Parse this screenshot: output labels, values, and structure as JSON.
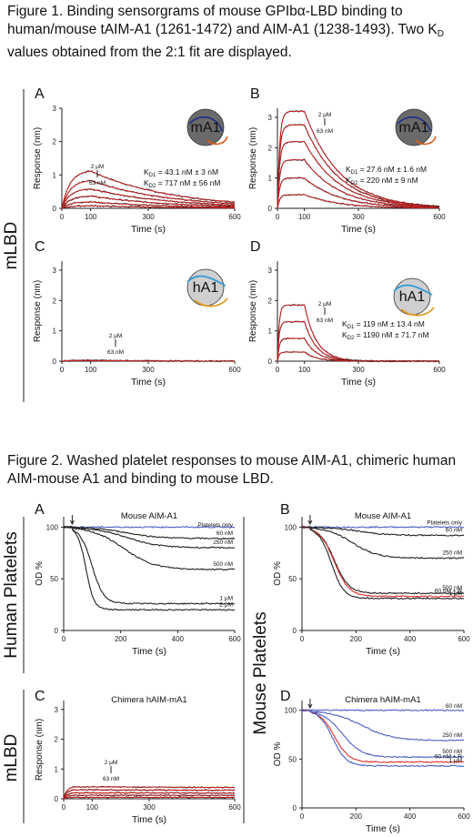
{
  "figure1": {
    "caption_pre": "Figure 1. Binding sensorgrams of mouse GPIbα-LBD binding to human/mouse tAIM-A1 (1261-1472) and AIM-A1 (1238-1493). Two K",
    "caption_sub": "D",
    "caption_post": " values obtained from the 2:1 fit are displayed.",
    "row_label": "mLBD"
  },
  "figure2": {
    "caption": "Figure 2. Washed platelet responses to mouse AIM-A1, chimeric human AIM-mouse A1 and binding to mouse LBD.",
    "row_labels": [
      "Human Platelets",
      "Mouse Platelets",
      "mLBD"
    ]
  },
  "colors": {
    "fit": "#d42020",
    "data": "#222222",
    "blue": "#4a5fc4",
    "red": "#e03030",
    "circle_dark": "#6a6a6a",
    "circle_light": "#cfcfcf"
  },
  "chart_data": [
    {
      "id": "1A",
      "type": "line",
      "panel_label": "A",
      "xlabel": "Time (s)",
      "ylabel": "Response (nm)",
      "xlim": [
        0,
        600
      ],
      "ylim": [
        0,
        3
      ],
      "xticks": [
        "0",
        "100",
        "300",
        "600"
      ],
      "yticks": [
        "0",
        "1",
        "2",
        "3"
      ],
      "conc_top": "2 μM",
      "conc_bottom": "63 nM",
      "kd1_label": "K",
      "kd1_sub": "D1",
      "kd1_value": " = 43.1 nM ± 3 nM",
      "kd2_label": "K",
      "kd2_sub": "D2",
      "kd2_value": " = 717 nM ± 56 nM",
      "icon_label": "mA1",
      "icon_style": "dark",
      "assoc_end": 100,
      "tau_on": 28,
      "tau_off": 280,
      "plateaus": [
        1.15,
        0.85,
        0.6,
        0.38,
        0.2,
        0.08
      ]
    },
    {
      "id": "1B",
      "type": "line",
      "panel_label": "B",
      "xlabel": "Time (s)",
      "ylabel": "Response (nm)",
      "xlim": [
        0,
        600
      ],
      "ylim": [
        0,
        3.3
      ],
      "xticks": [
        "0",
        "100",
        "300",
        "600"
      ],
      "yticks": [
        "0",
        "1",
        "2",
        "3"
      ],
      "conc_top": "2 μM",
      "conc_bottom": "63 nM",
      "kd1_label": "K",
      "kd1_sub": "D1",
      "kd1_value": " = 27.6 nM ± 1.6 nM",
      "kd2_label": "K",
      "kd2_sub": "D2",
      "kd2_value": " = 220 nM ± 9 nM",
      "icon_label": "mA1",
      "icon_style": "dark",
      "assoc_end": 100,
      "tau_on": 8,
      "tau_off": 130,
      "plateaus": [
        3.2,
        2.75,
        2.2,
        1.6,
        1.0,
        0.45
      ]
    },
    {
      "id": "1C",
      "type": "line",
      "panel_label": "C",
      "xlabel": "Time (s)",
      "ylabel": "Response (nm)",
      "xlim": [
        0,
        600
      ],
      "ylim": [
        0,
        3.3
      ],
      "xticks": [
        "0",
        "100",
        "300",
        "600"
      ],
      "yticks": [
        "0",
        "1",
        "2",
        "3"
      ],
      "conc_top": "2 μM",
      "conc_bottom": "63 nM",
      "icon_label": "hA1",
      "icon_style": "light",
      "assoc_end": 100,
      "tau_on": 20,
      "tau_off": 200,
      "plateaus": [
        0.03,
        0.02
      ]
    },
    {
      "id": "1D",
      "type": "line",
      "panel_label": "D",
      "xlabel": "Time (s)",
      "ylabel": "Response (nm)",
      "xlim": [
        0,
        600
      ],
      "ylim": [
        0,
        3.3
      ],
      "xticks": [
        "0",
        "100",
        "300",
        "600"
      ],
      "yticks": [
        "0",
        "1",
        "2",
        "3"
      ],
      "conc_top": "2 μM",
      "conc_bottom": "63 nM",
      "kd1_label": "K",
      "kd1_sub": "D1",
      "kd1_value": " = 119 nM ± 13.4 nM",
      "kd2_label": "K",
      "kd2_sub": "D2",
      "kd2_value": " = 1190 nM ± 71.7 nM",
      "icon_label": "hA1",
      "icon_style": "light",
      "assoc_end": 100,
      "tau_on": 6,
      "tau_off": 45,
      "plateaus": [
        1.85,
        1.3,
        0.75,
        0.3
      ]
    },
    {
      "id": "2A",
      "type": "line",
      "panel_label": "A",
      "title": "Mouse AIM-A1",
      "xlabel": "Time (s)",
      "ylabel": "OD %",
      "xlim": [
        0,
        600
      ],
      "ylim": [
        0,
        110
      ],
      "xticks": [
        "0",
        "200",
        "400",
        "600"
      ],
      "yticks": [
        "0",
        "50",
        "100"
      ],
      "series": [
        {
          "name": "Platelets only",
          "color": "blue",
          "final": 96,
          "t50": 9999
        },
        {
          "name": "60 nM",
          "color": "data",
          "final": 89,
          "t50": 320
        },
        {
          "name": "250 nM",
          "color": "data",
          "final": 80,
          "t50": 320
        },
        {
          "name": "500 nM",
          "color": "data",
          "final": 59,
          "t50": 300
        },
        {
          "name": "1 μM",
          "color": "data",
          "final": 26,
          "t50": 115
        },
        {
          "name": "2 μM",
          "color": "data",
          "final": 20,
          "t50": 80
        }
      ]
    },
    {
      "id": "2B",
      "type": "line",
      "panel_label": "B",
      "title": "Mouse AIM-A1",
      "xlabel": "Time (s)",
      "ylabel": "OD %",
      "xlim": [
        0,
        600
      ],
      "ylim": [
        0,
        110
      ],
      "xticks": [
        "0",
        "200",
        "400",
        "600"
      ],
      "yticks": [
        "0",
        "50",
        "100"
      ],
      "series": [
        {
          "name": "Platelets only",
          "color": "blue",
          "final": 98,
          "t50": 9999
        },
        {
          "name": "60 nM",
          "color": "data",
          "final": 92,
          "t50": 300
        },
        {
          "name": "250 nM",
          "color": "data",
          "final": 70,
          "t50": 260
        },
        {
          "name": "500 nM",
          "color": "data",
          "final": 36,
          "t50": 150
        },
        {
          "name": "60 nM + R",
          "color": "red",
          "final": 33,
          "t50": 150
        },
        {
          "name": "1 μM",
          "color": "data",
          "final": 31,
          "t50": 130
        }
      ]
    },
    {
      "id": "2C",
      "type": "line",
      "panel_label": "C",
      "title": "Chimera hAIM-mA1",
      "xlabel": "Time (s)",
      "ylabel": "Response (nm)",
      "xlim": [
        0,
        600
      ],
      "ylim": [
        0,
        3.3
      ],
      "xticks": [
        "0",
        "100",
        "300",
        "600"
      ],
      "yticks": [
        "0",
        "1",
        "2",
        "3"
      ],
      "conc_top": "2 μM",
      "conc_bottom": "63 nM",
      "assoc_end": 100,
      "tau_on": 10,
      "tau_off": 9999,
      "plateaus": [
        0.4,
        0.3,
        0.2,
        0.12,
        0.05
      ]
    },
    {
      "id": "2D",
      "type": "line",
      "panel_label": "D",
      "title": "Chimera hAIM-mA1",
      "xlabel": "Time (s)",
      "ylabel": "OD %",
      "xlim": [
        0,
        600
      ],
      "ylim": [
        0,
        110
      ],
      "xticks": [
        "0",
        "200",
        "400",
        "600"
      ],
      "yticks": [
        "0",
        "50",
        "100"
      ],
      "series": [
        {
          "name": "60 nM",
          "color": "blue",
          "final": 98,
          "t50": 9999
        },
        {
          "name": "250 nM",
          "color": "blue",
          "final": 69,
          "t50": 320
        },
        {
          "name": "500 nM",
          "color": "blue",
          "final": 52,
          "t50": 200
        },
        {
          "name": "60 nM + R",
          "color": "red",
          "final": 47,
          "t50": 150
        },
        {
          "name": "1 μM",
          "color": "blue",
          "final": 43,
          "t50": 140
        }
      ]
    }
  ]
}
